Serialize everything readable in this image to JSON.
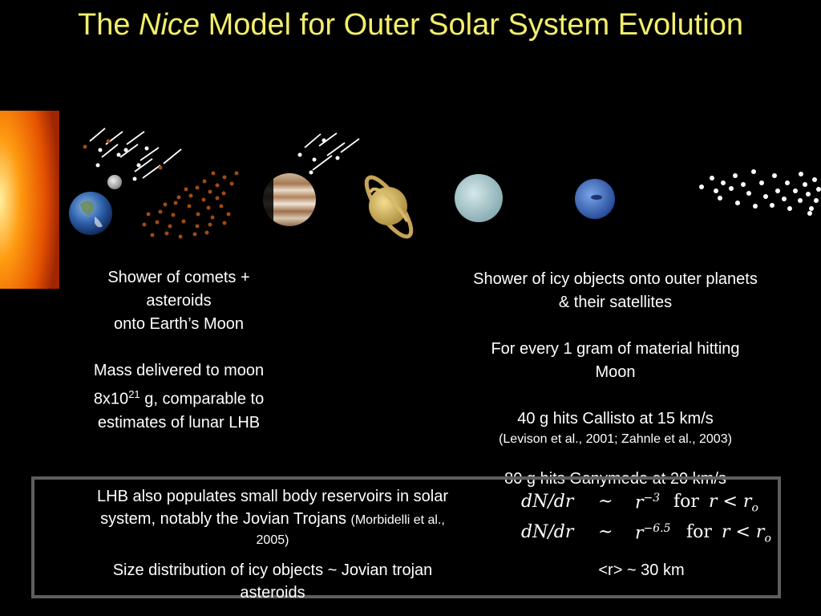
{
  "title": {
    "prefix": "The ",
    "italic": "Nice",
    "suffix": " Model for Outer Solar System Evolution"
  },
  "left_text": {
    "line1": "Shower of comets +",
    "line2": "asteroids",
    "line3": "onto Earth’s Moon",
    "mass_line1": "Mass delivered to moon",
    "mass_line2_pre": "8x10",
    "mass_line2_sup": "21",
    "mass_line2_post": " g, comparable to",
    "mass_line3": "estimates of lunar LHB"
  },
  "right_text": {
    "line1": "Shower of icy objects onto outer planets",
    "line2": "& their satellites",
    "gram_line1": "For every 1 gram of material hitting",
    "gram_line2": "Moon",
    "callisto": "40 g hits Callisto at 15 km/s",
    "callisto_ref": "(Levison et al., 2001; Zahnle et al., 2003)",
    "ganymede": "80 g hits Ganymede at 20 km/s"
  },
  "box_text": {
    "line1": "LHB also populates small body reservoirs in solar",
    "line2": "system, notably the Jovian Trojans ",
    "line2_ref": "(Morbidelli et al.,",
    "line3_ref": "2005)",
    "size_line1": "Size distribution of icy objects ~ Jovian trojan",
    "size_line2": "asteroids"
  },
  "equations": {
    "eq1_lhs": "dN/dr",
    "eq1_sim": "~",
    "eq1_r": "r",
    "eq1_exp": "−3",
    "eq1_for": "for",
    "eq1_cond": "r < r",
    "eq1_sub": "o",
    "eq2_lhs": "dN/dr",
    "eq2_sim": "~",
    "eq2_r": "r",
    "eq2_exp": "−6.5",
    "eq2_for": "for",
    "eq2_cond": "r < r",
    "eq2_sub": "o"
  },
  "radius_note": "<r> ~ 30 km",
  "colors": {
    "title": "#f3ee6b",
    "asteroid_dots": "#a04a14",
    "box_border": "#5e5e5e"
  }
}
